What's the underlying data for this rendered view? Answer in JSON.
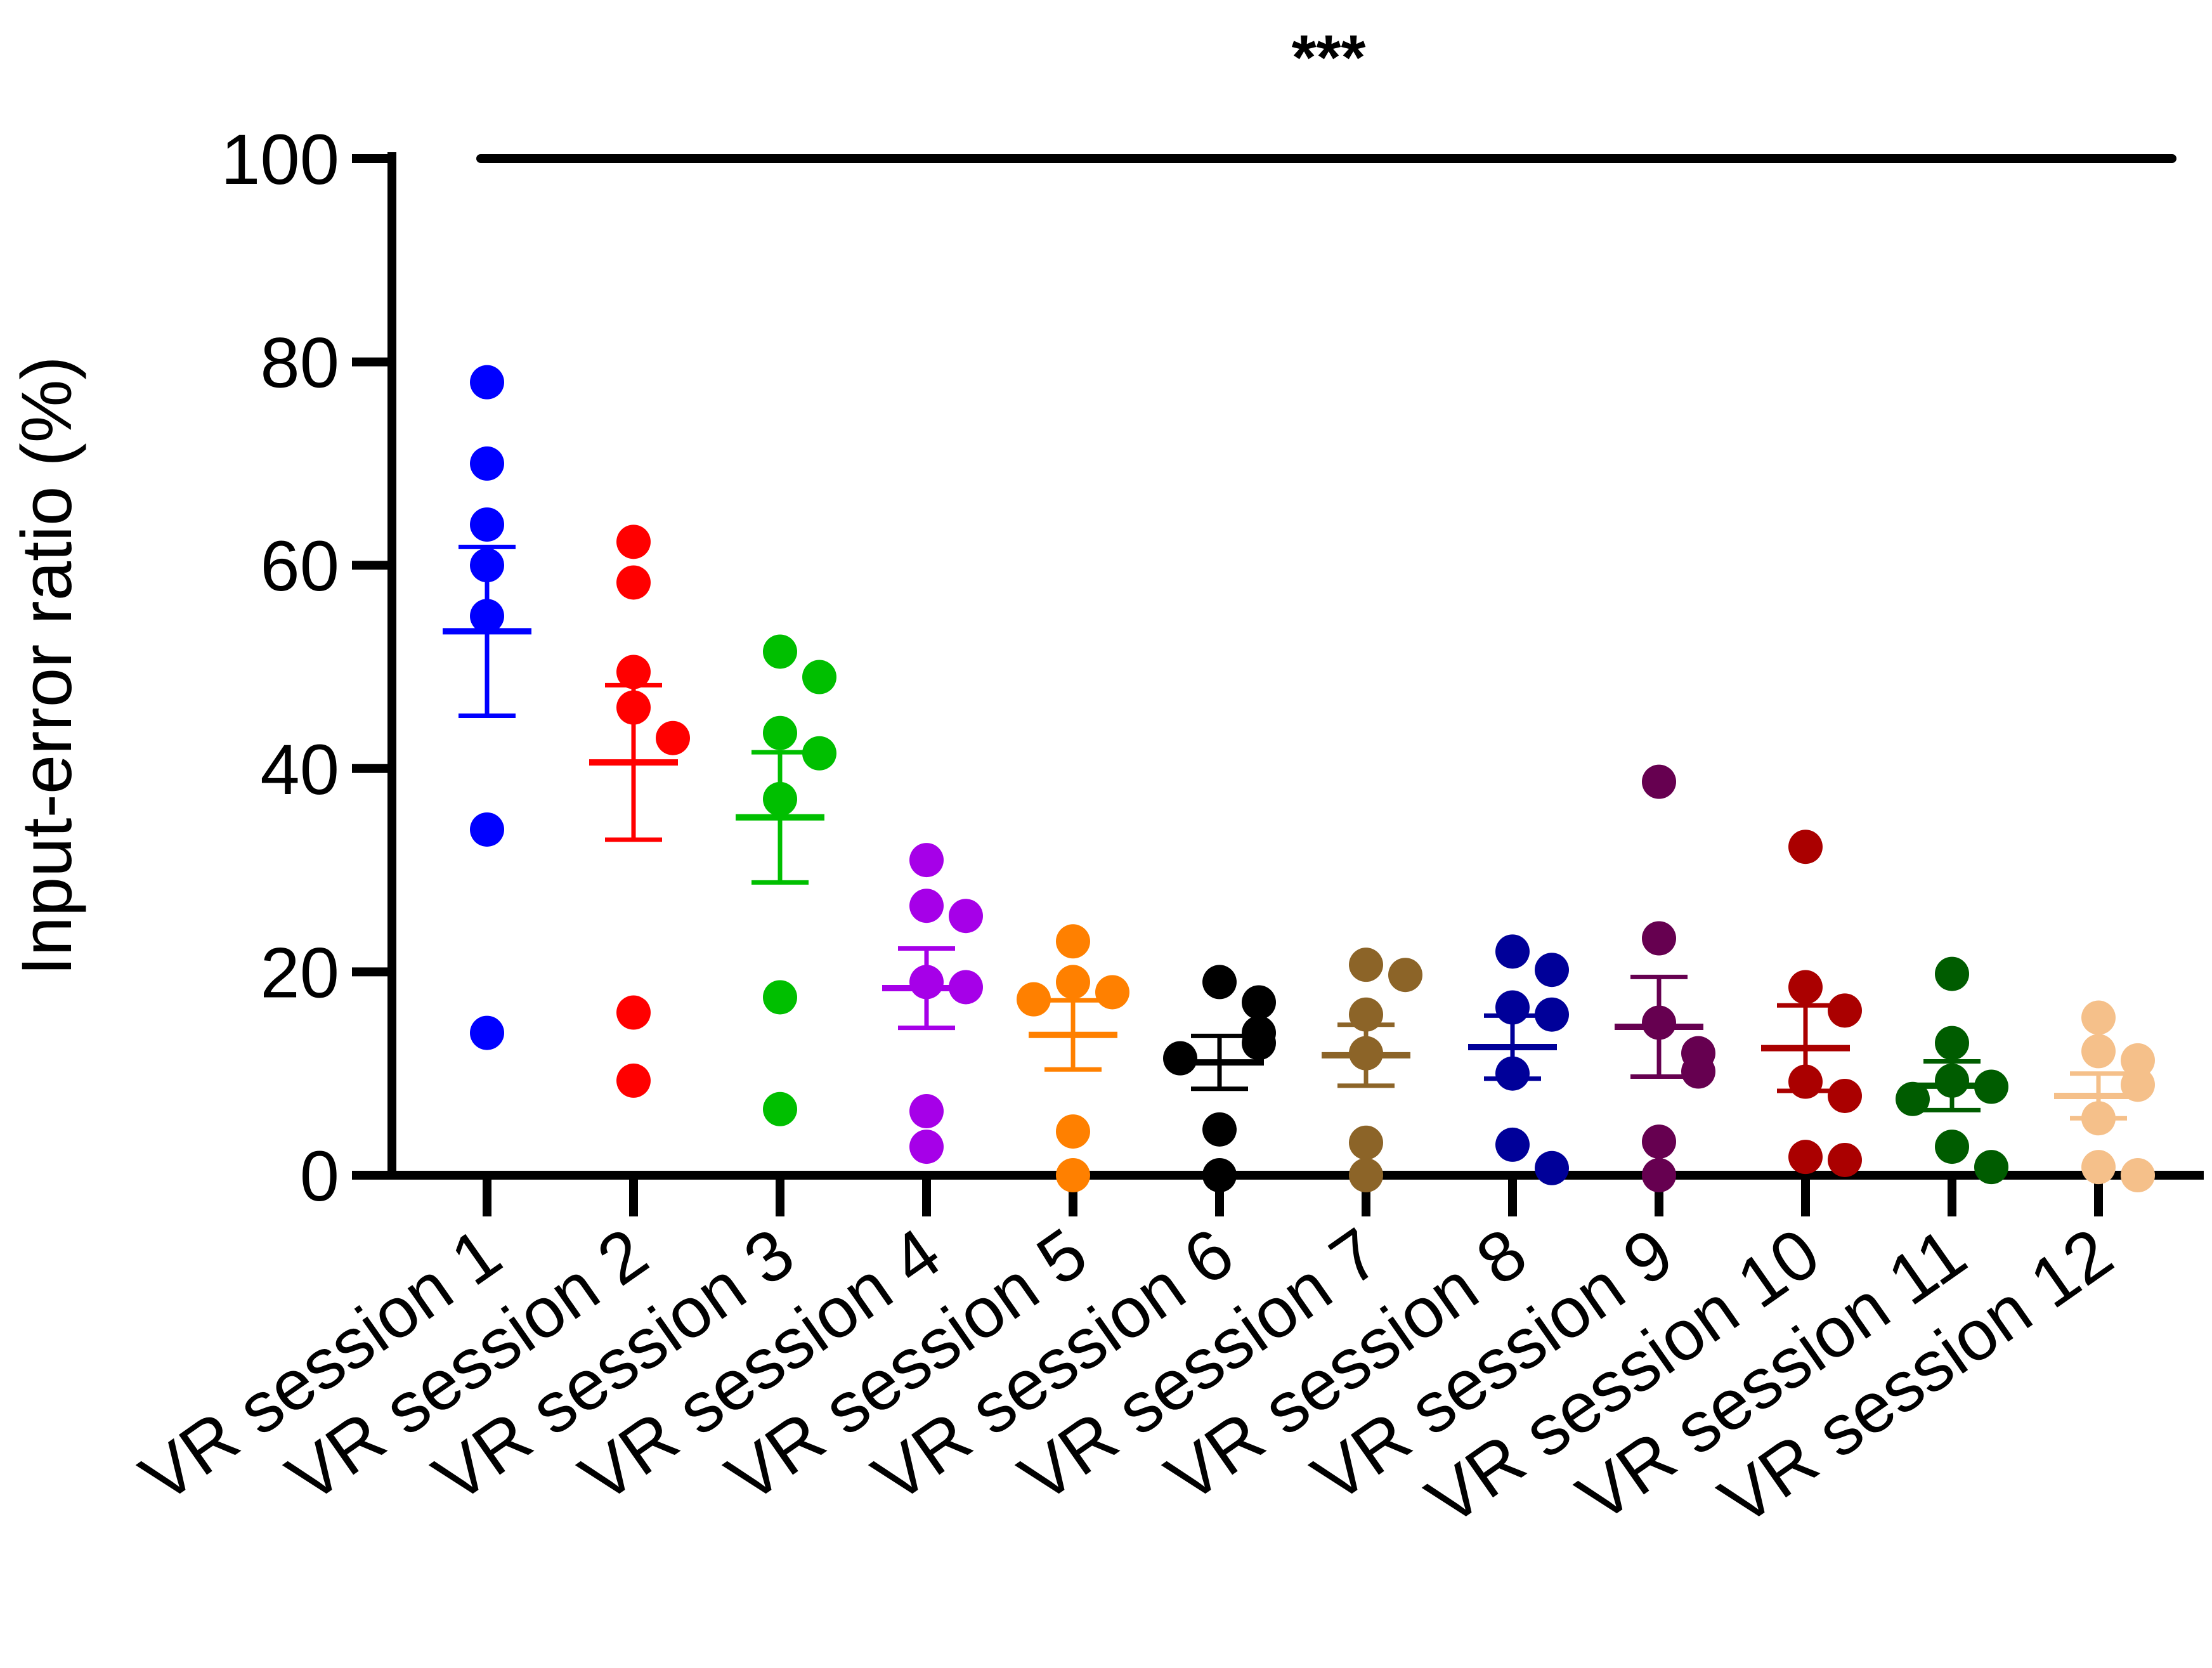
{
  "chart_data": {
    "type": "scatter",
    "title": "",
    "xlabel": "",
    "ylabel": "Input-error ratio  (%)",
    "ylim": [
      0,
      100
    ],
    "yticks": [
      0,
      20,
      40,
      60,
      80,
      100
    ],
    "grid": false,
    "significance": "***",
    "categories": [
      "VR session 1",
      "VR session 2",
      "VR session 3",
      "VR session 4",
      "VR session 5",
      "VR session 6",
      "VR session 7",
      "VR session 8",
      "VR session 9",
      "VR session 10",
      "VR session 11",
      "VR session 12"
    ],
    "series": [
      {
        "name": "VR session 1",
        "color": "#0000ff",
        "points": [
          78,
          70,
          64,
          60,
          55,
          34,
          14
        ],
        "mean": 53.5,
        "sem": 8.3
      },
      {
        "name": "VR session 2",
        "color": "#ff0000",
        "points": [
          62.3,
          58.3,
          49.5,
          46,
          43,
          16,
          9.3
        ],
        "mean": 40.6,
        "sem": 7.6
      },
      {
        "name": "VR session 3",
        "color": "#00bf00",
        "points": [
          51.5,
          49,
          43.5,
          41.5,
          37,
          17.5,
          6.5
        ],
        "mean": 35.2,
        "sem": 6.4
      },
      {
        "name": "VR session 4",
        "color": "#a600e8",
        "points": [
          31,
          26.5,
          25.5,
          19,
          18.5,
          6.3,
          2.8
        ],
        "mean": 18.4,
        "sem": 3.9
      },
      {
        "name": "VR session 5",
        "color": "#ff8000",
        "points": [
          23,
          19,
          18,
          17.3,
          4.3,
          0
        ],
        "mean": 13.8,
        "sem": 3.4
      },
      {
        "name": "VR session 6",
        "color": "#000000",
        "points": [
          19,
          17,
          14,
          13,
          11.5,
          4.5,
          0
        ],
        "mean": 11.1,
        "sem": 2.6
      },
      {
        "name": "VR session 7",
        "color": "#8c6428",
        "points": [
          20.7,
          19.7,
          15.8,
          12,
          3.2,
          0
        ],
        "mean": 11.8,
        "sem": 3.0
      },
      {
        "name": "VR session 8",
        "color": "#000099",
        "points": [
          22,
          20.2,
          16.5,
          15.8,
          10,
          3,
          0.7
        ],
        "mean": 12.6,
        "sem": 3.1
      },
      {
        "name": "VR session 9",
        "color": "#660050",
        "points": [
          38.7,
          23.3,
          15,
          12,
          10.2,
          3.3,
          0
        ],
        "mean": 14.6,
        "sem": 4.9
      },
      {
        "name": "VR session 10",
        "color": "#aa0000",
        "points": [
          32.3,
          18.5,
          16.2,
          9.2,
          7.8,
          1.8,
          1.5
        ],
        "mean": 12.5,
        "sem": 4.2
      },
      {
        "name": "VR session 11",
        "color": "#005c00",
        "points": [
          19.8,
          13,
          9.3,
          8.7,
          7.5,
          2.8,
          0.8
        ],
        "mean": 8.8,
        "sem": 2.4
      },
      {
        "name": "VR session 12",
        "color": "#f5c08a",
        "points": [
          15.5,
          12.2,
          11.3,
          8.9,
          5.6,
          0.8,
          0
        ],
        "mean": 7.8,
        "sem": 2.2
      }
    ]
  }
}
